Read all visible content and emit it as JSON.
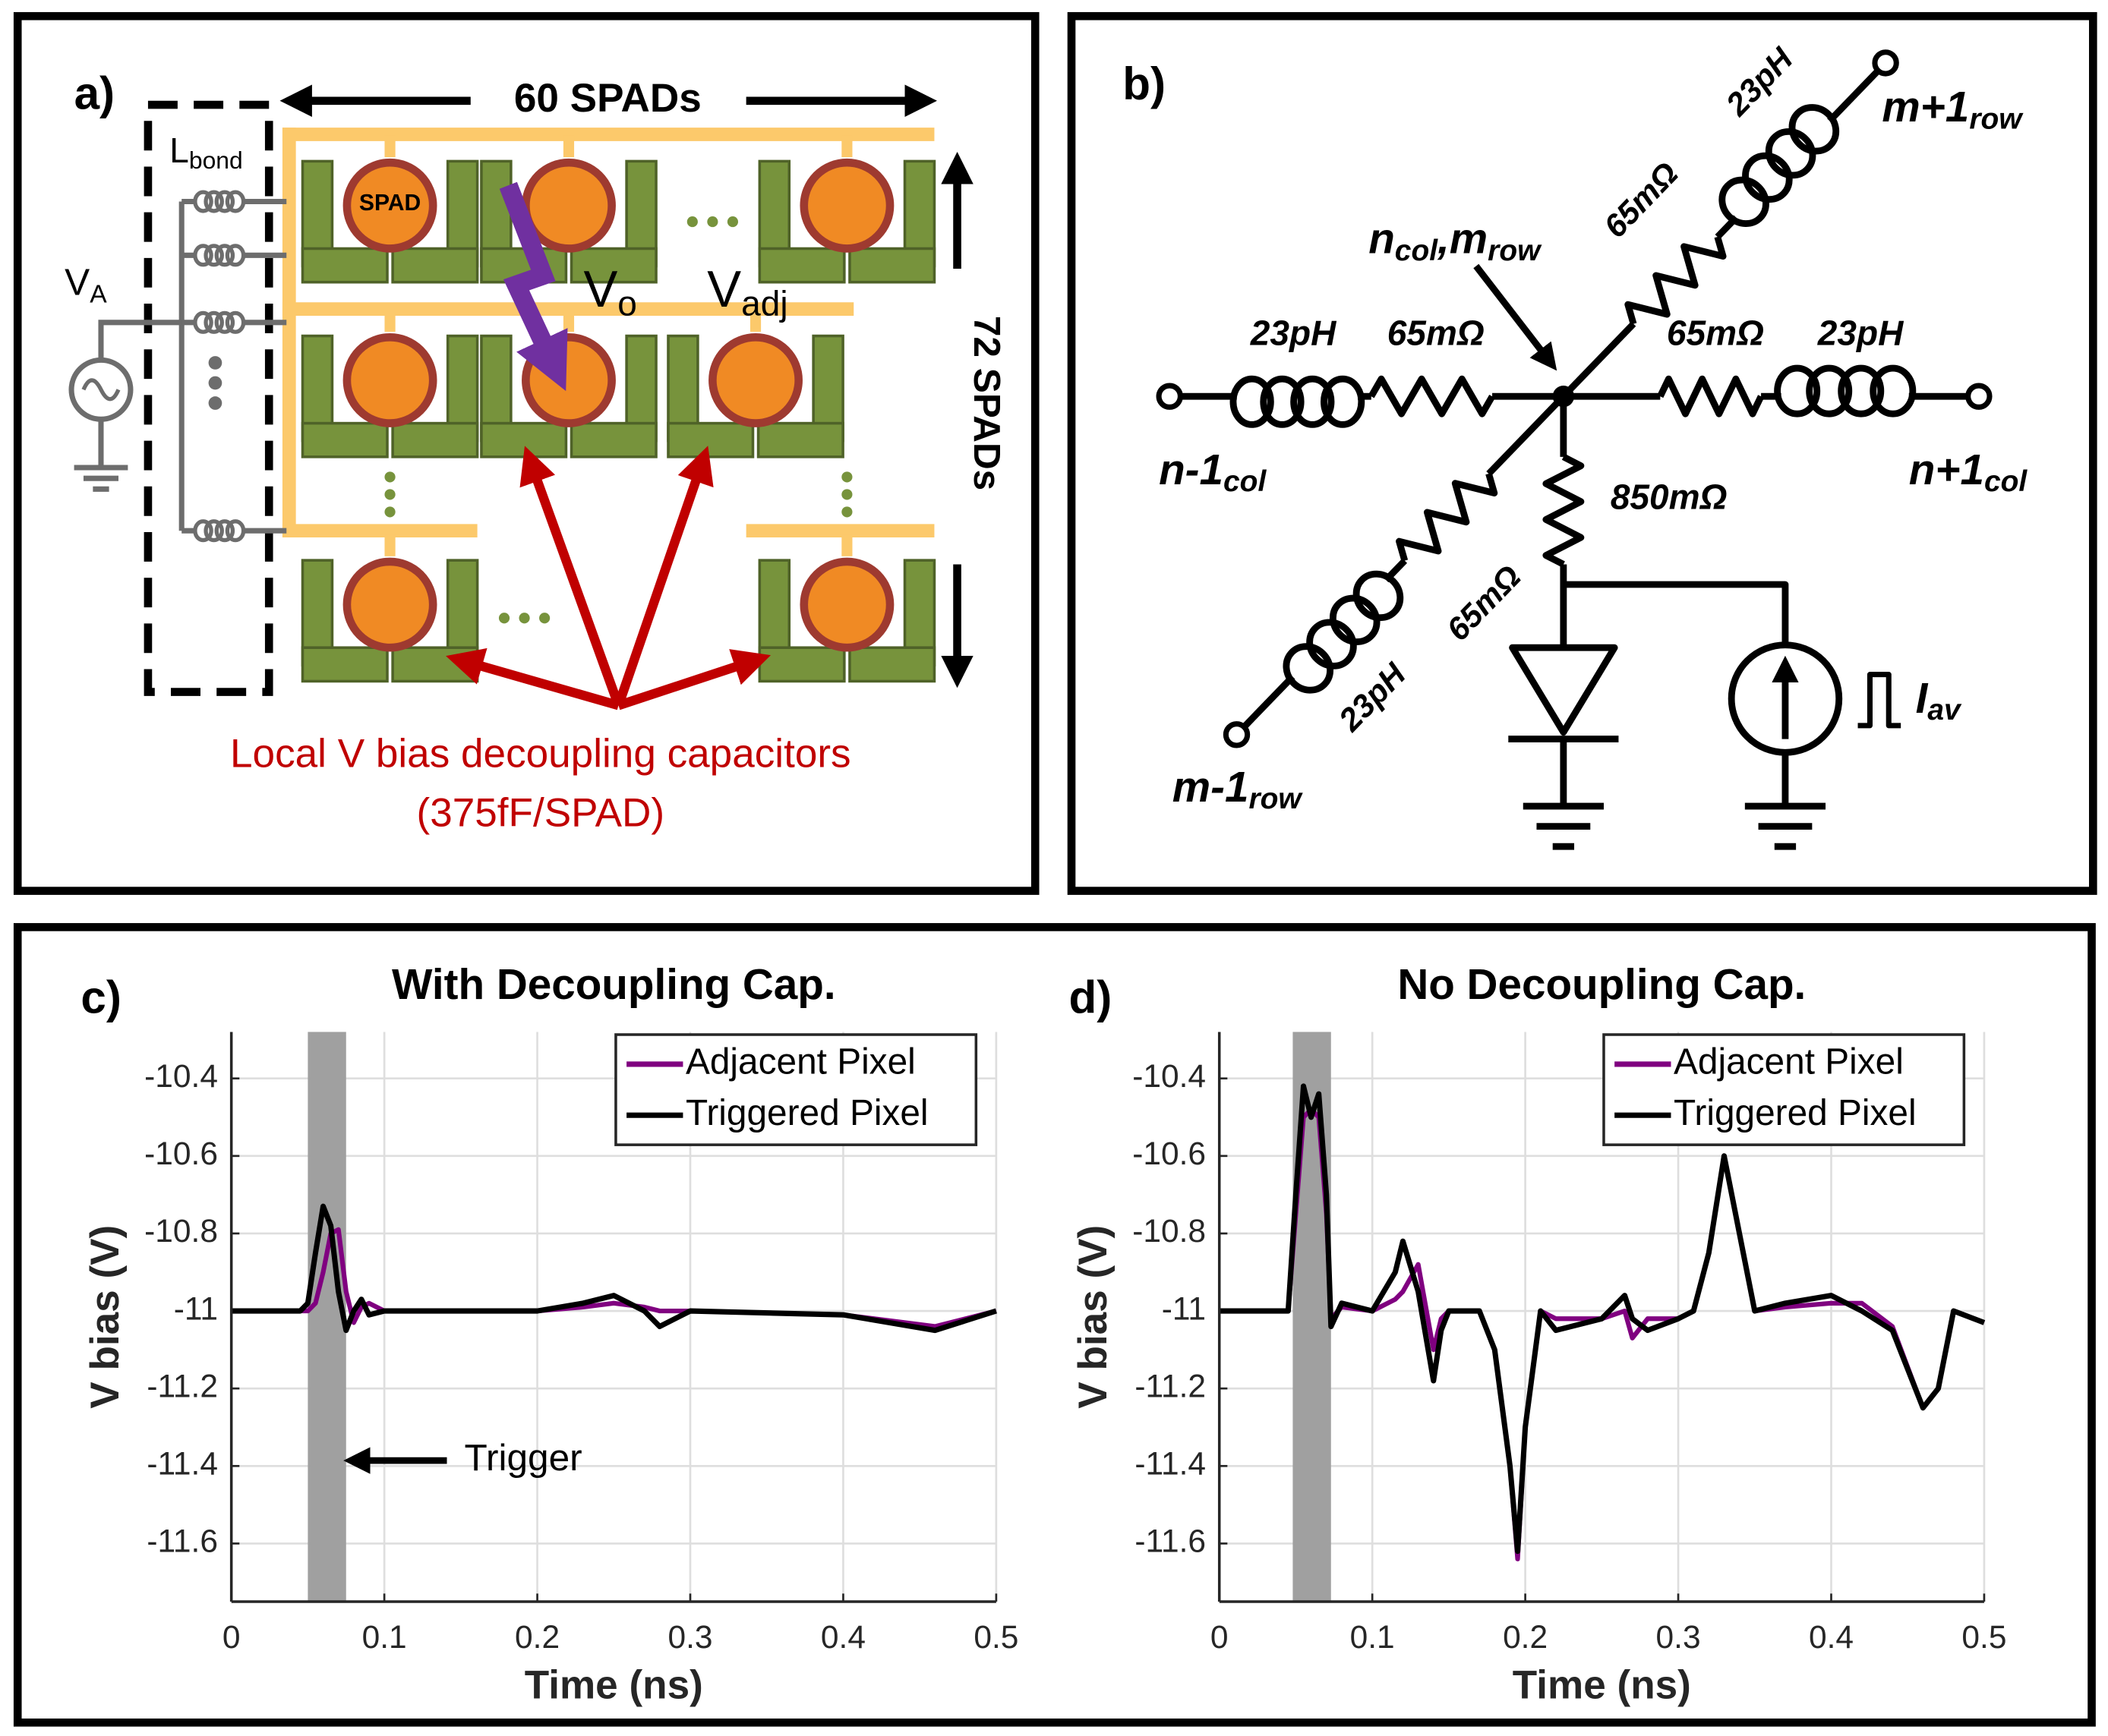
{
  "panel_a": {
    "label": "a)",
    "width_label": "60 SPADs",
    "height_label": "72 SPADs",
    "inductor": {
      "symbol": "L",
      "subscript": "bond"
    },
    "cell_label": "SPAD",
    "source": {
      "symbol": "V",
      "subscript": "A"
    },
    "node_labels": [
      {
        "symbol": "V",
        "subscript": "o"
      },
      {
        "symbol": "V",
        "subscript": "adj"
      }
    ],
    "caption": [
      "Local V bias decoupling capacitors",
      "(375fF/SPAD)"
    ]
  },
  "panel_b": {
    "label": "b)",
    "node": [
      "n",
      "col",
      ",m",
      "row"
    ],
    "terminals": [
      {
        "name": "m+1",
        "subscript": "row"
      },
      {
        "name": "n-1",
        "subscript": "col"
      },
      {
        "name": "n+1",
        "subscript": "col"
      },
      {
        "name": "m-1",
        "subscript": "row"
      }
    ],
    "branches": [
      {
        "inductance": "23pH",
        "resistance": "65mΩ"
      },
      {
        "inductance": "23pH",
        "resistance": "65mΩ"
      },
      {
        "inductance": "23pH",
        "resistance": "65mΩ"
      },
      {
        "inductance": "23pH",
        "resistance": "65mΩ"
      }
    ],
    "shunt_resistance": "850mΩ",
    "current_source": {
      "symbol": "I",
      "subscript": "av"
    }
  },
  "chart_data": [
    {
      "type": "line",
      "panel_label": "c)",
      "title": "With Decoupling Cap.",
      "x_label": "Time (ns)",
      "y_label": "V bias (V)",
      "x": [
        0,
        0.045,
        0.05,
        0.055,
        0.06,
        0.065,
        0.07,
        0.075,
        0.08,
        0.085,
        0.09,
        0.1,
        0.2,
        0.23,
        0.25,
        0.27,
        0.28,
        0.3,
        0.4,
        0.46,
        0.5
      ],
      "series": [
        {
          "name": "Adjacent Pixel",
          "color": "#800080",
          "values": [
            -11,
            -11,
            -11,
            -10.98,
            -10.9,
            -10.8,
            -10.79,
            -10.95,
            -11.03,
            -10.99,
            -10.98,
            -11,
            -11,
            -10.99,
            -10.98,
            -10.99,
            -11.0,
            -11,
            -11.01,
            -11.04,
            -11
          ]
        },
        {
          "name": "Triggered Pixel",
          "color": "#000000",
          "values": [
            -11,
            -11,
            -10.98,
            -10.85,
            -10.73,
            -10.78,
            -10.95,
            -11.05,
            -11.0,
            -10.97,
            -11.01,
            -11,
            -11,
            -10.98,
            -10.96,
            -11.0,
            -11.04,
            -11,
            -11.01,
            -11.05,
            -11
          ]
        }
      ],
      "xlim": [
        0,
        0.5
      ],
      "ylim": [
        -11.75,
        -10.28
      ],
      "xticks": [
        0,
        0.1,
        0.2,
        0.3,
        0.4,
        0.5
      ],
      "yticks": [
        -10.4,
        -10.6,
        -10.8,
        -11,
        -11.2,
        -11.4,
        -11.6
      ],
      "grid": true,
      "legend": "northeast",
      "shaded_region": [
        0.05,
        0.075
      ],
      "shade_color": "#a0a0a0",
      "annotation": "Trigger"
    },
    {
      "type": "line",
      "panel_label": "d)",
      "title": "No Decoupling Cap.",
      "x_label": "Time (ns)",
      "y_label": "V bias (V)",
      "x": [
        0,
        0.045,
        0.05,
        0.055,
        0.06,
        0.065,
        0.07,
        0.073,
        0.08,
        0.1,
        0.115,
        0.12,
        0.13,
        0.14,
        0.145,
        0.15,
        0.17,
        0.18,
        0.19,
        0.195,
        0.2,
        0.21,
        0.22,
        0.25,
        0.265,
        0.27,
        0.28,
        0.3,
        0.31,
        0.32,
        0.33,
        0.34,
        0.35,
        0.37,
        0.4,
        0.42,
        0.44,
        0.46,
        0.47,
        0.48,
        0.5
      ],
      "series": [
        {
          "name": "Adjacent Pixel",
          "color": "#800080",
          "values": [
            -11,
            -11,
            -10.75,
            -10.5,
            -10.48,
            -10.5,
            -10.75,
            -11.02,
            -10.99,
            -11,
            -10.97,
            -10.95,
            -10.88,
            -11.1,
            -11.02,
            -11,
            -11,
            -11.1,
            -11.4,
            -11.64,
            -11.3,
            -11,
            -11.02,
            -11.02,
            -11.0,
            -11.07,
            -11.02,
            -11.02,
            -11,
            -10.85,
            -10.6,
            -10.8,
            -11,
            -10.99,
            -10.98,
            -10.98,
            -11.04,
            -11.25,
            -11.2,
            -11,
            -11.03
          ]
        },
        {
          "name": "Triggered Pixel",
          "color": "#000000",
          "values": [
            -11,
            -11,
            -10.7,
            -10.42,
            -10.5,
            -10.44,
            -10.7,
            -11.04,
            -10.98,
            -11,
            -10.9,
            -10.82,
            -10.95,
            -11.18,
            -11.05,
            -11,
            -11,
            -11.1,
            -11.4,
            -11.62,
            -11.3,
            -11,
            -11.05,
            -11.02,
            -10.96,
            -11.02,
            -11.05,
            -11.02,
            -11,
            -10.85,
            -10.6,
            -10.8,
            -11,
            -10.98,
            -10.96,
            -11,
            -11.05,
            -11.25,
            -11.2,
            -11,
            -11.03
          ]
        }
      ],
      "xlim": [
        0,
        0.5
      ],
      "ylim": [
        -11.75,
        -10.28
      ],
      "xticks": [
        0,
        0.1,
        0.2,
        0.3,
        0.4,
        0.5
      ],
      "yticks": [
        -10.4,
        -10.6,
        -10.8,
        -11,
        -11.2,
        -11.4,
        -11.6
      ],
      "grid": true,
      "legend": "northeast",
      "shaded_region": [
        0.048,
        0.073
      ],
      "shade_color": "#a0a0a0"
    }
  ]
}
